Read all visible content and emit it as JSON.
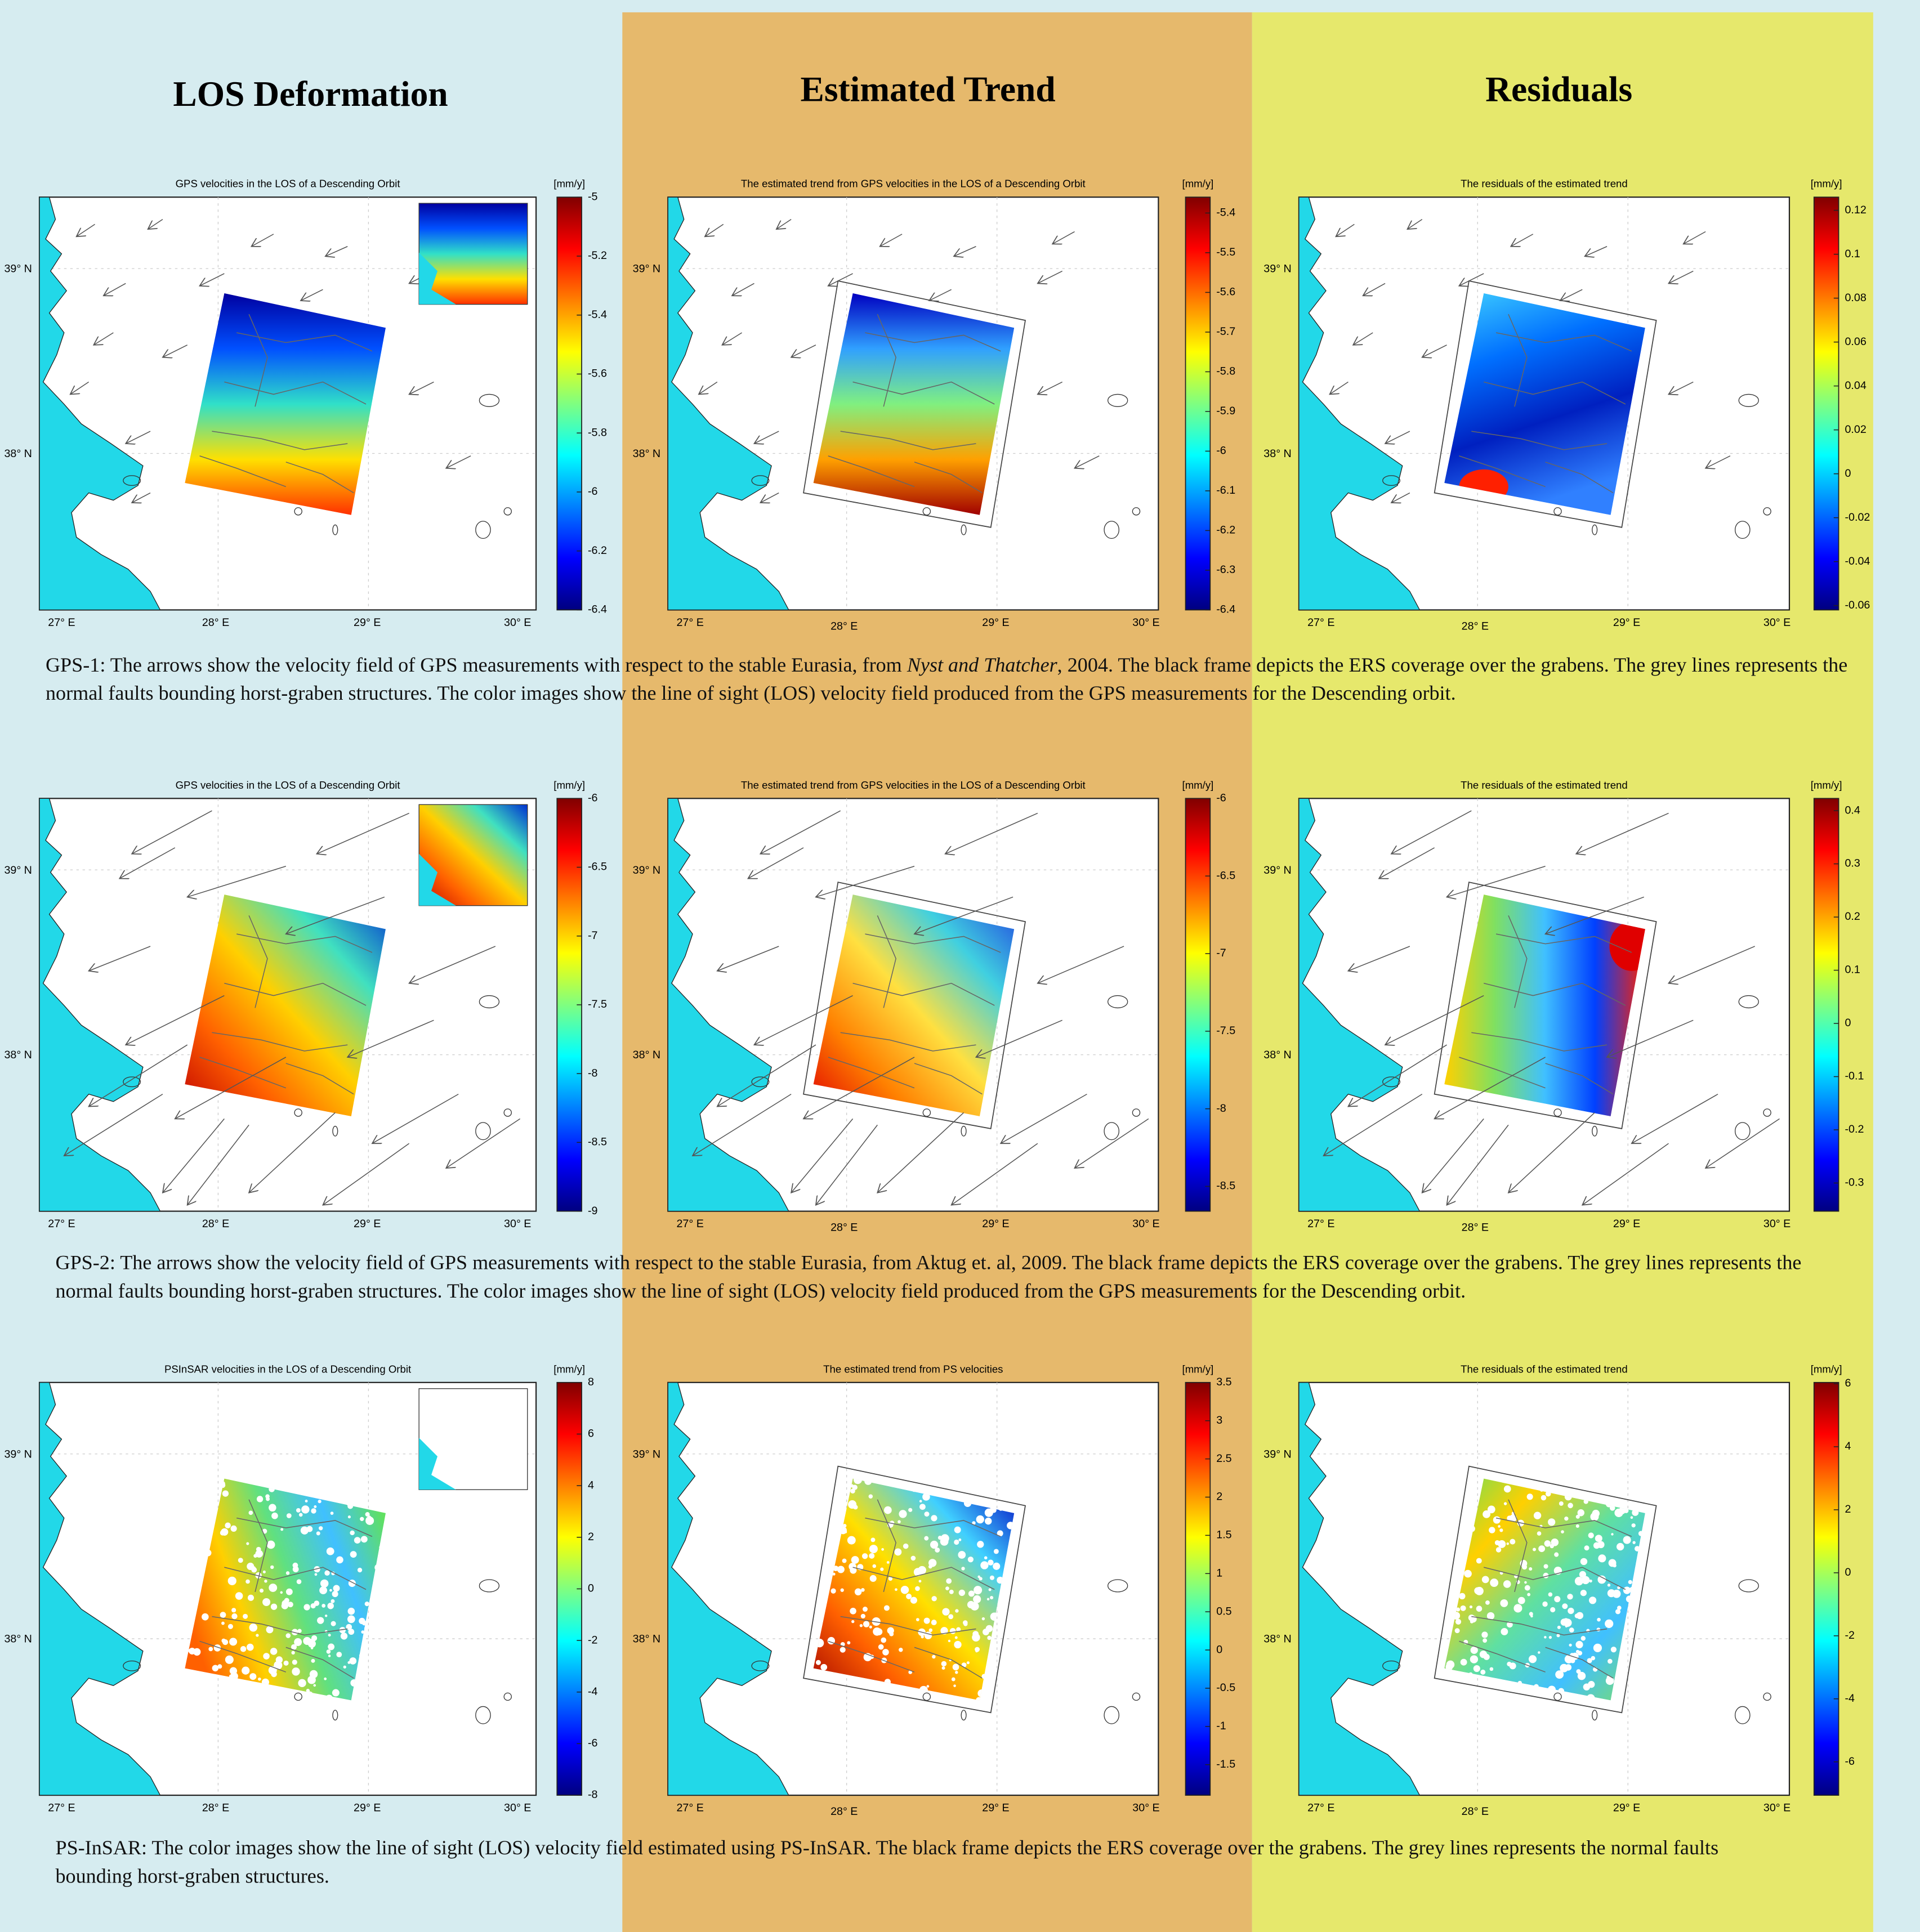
{
  "headers": [
    "LOS Deformation",
    "Estimated Trend",
    "Residuals"
  ],
  "map_labels": {
    "x": [
      "27° E",
      "28° E",
      "29° E",
      "30° E"
    ],
    "y": [
      "39° N",
      "38° N"
    ]
  },
  "rows": [
    {
      "panels": [
        {
          "title": "GPS velocities in the LOS of a Descending Orbit",
          "unit": "[mm/y]",
          "colorbar": {
            "range": [
              -6.4,
              -5
            ],
            "ticks": [
              -5,
              -5.2,
              -5.4,
              -5.6,
              -5.8,
              -6,
              -6.2,
              -6.4
            ]
          }
        },
        {
          "title": "The estimated trend from GPS velocities in the LOS of a Descending Orbit",
          "unit": "[mm/y]",
          "colorbar": {
            "range": [
              -6.4,
              -5.36
            ],
            "ticks": [
              -5.4,
              -5.5,
              -5.6,
              -5.7,
              -5.8,
              -5.9,
              -6,
              -6.1,
              -6.2,
              -6.3,
              -6.4
            ]
          }
        },
        {
          "title": "The residuals of the estimated trend",
          "unit": "[mm/y]",
          "colorbar": {
            "range": [
              -0.062,
              0.126
            ],
            "ticks": [
              0.12,
              0.1,
              0.08,
              0.06,
              0.04,
              0.02,
              0,
              -0.02,
              -0.04,
              -0.06
            ]
          }
        }
      ],
      "caption": [
        {
          "text": "GPS-1: The arrows show the velocity field of GPS measurements with respect to the stable Eurasia, from "
        },
        {
          "text": "Nyst and Thatcher",
          "italic": true
        },
        {
          "text": ", 2004. The black frame depicts the ERS coverage over the grabens.  The grey lines represents the normal faults bounding horst-graben structures. The color images show the line of sight (LOS) velocity field produced from the GPS measurements for the Descending orbit."
        }
      ]
    },
    {
      "panels": [
        {
          "title": "GPS velocities in the LOS of a Descending Orbit",
          "unit": "[mm/y]",
          "colorbar": {
            "range": [
              -9,
              -6
            ],
            "ticks": [
              -6,
              -6.5,
              -7,
              -7.5,
              -8,
              -8.5,
              -9
            ]
          }
        },
        {
          "title": "The estimated trend from GPS velocities in the LOS of a Descending Orbit",
          "unit": "[mm/y]",
          "colorbar": {
            "range": [
              -8.66,
              -6
            ],
            "ticks": [
              -6,
              -6.5,
              -7,
              -7.5,
              -8,
              -8.5
            ]
          }
        },
        {
          "title": "The residuals of the estimated trend",
          "unit": "[mm/y]",
          "colorbar": {
            "range": [
              -0.353,
              0.423
            ],
            "ticks": [
              0.4,
              0.3,
              0.2,
              0.1,
              0,
              -0.1,
              -0.2,
              -0.3
            ]
          }
        }
      ],
      "caption": [
        {
          "text": "GPS-2: The arrows show the velocity field of GPS measurements with respect to the stable Eurasia, from Aktug et. al, 2009. The black frame depicts the ERS coverage over the grabens. The grey lines represents the normal faults bounding horst-graben structures. The color images show the line of sight (LOS) velocity field produced from the GPS measurements for the Descending orbit."
        }
      ]
    },
    {
      "panels": [
        {
          "title": "PSInSAR velocities in the LOS of a Descending Orbit",
          "unit": "[mm/y]",
          "colorbar": {
            "range": [
              -8,
              8
            ],
            "ticks": [
              8,
              6,
              4,
              2,
              0,
              -2,
              -4,
              -6,
              -8
            ]
          }
        },
        {
          "title": "The estimated trend from PS velocities",
          "unit": "[mm/y]",
          "colorbar": {
            "range": [
              -1.9,
              3.5
            ],
            "ticks": [
              3.5,
              3,
              2.5,
              2,
              1.5,
              1,
              0.5,
              0,
              -0.5,
              -1,
              -1.5
            ]
          }
        },
        {
          "title": "The residuals of the estimated trend",
          "unit": "[mm/y]",
          "colorbar": {
            "range": [
              -7.06,
              6.04
            ],
            "ticks": [
              6,
              4,
              2,
              0,
              -2,
              -4,
              -6
            ]
          }
        }
      ],
      "caption": [
        {
          "text": "PS-InSAR: The color images show the line of sight (LOS) velocity field estimated using PS-InSAR. The black frame depicts the ERS coverage over the grabens.  The grey lines represents the normal faults bounding horst-graben structures."
        }
      ]
    }
  ]
}
